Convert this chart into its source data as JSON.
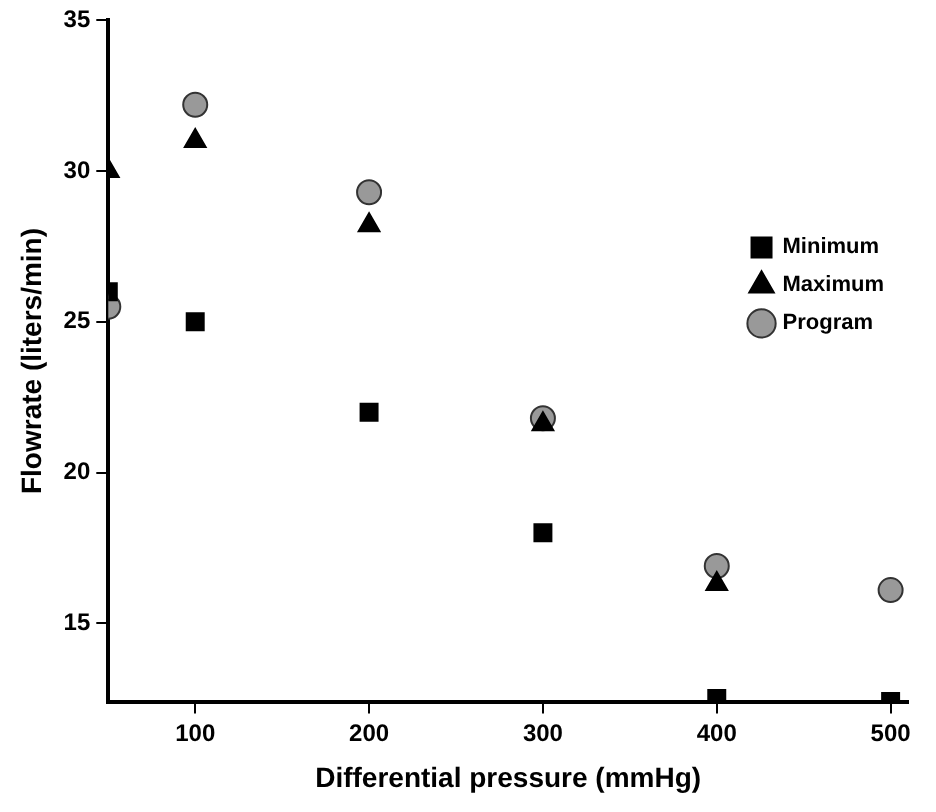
{
  "chart_data": {
    "type": "scatter",
    "xlabel": "Differential pressure (mmHg)",
    "ylabel": "Flowrate (liters/min)",
    "x": [
      50,
      100,
      200,
      300,
      400,
      500
    ],
    "series": [
      {
        "name": "Minimum",
        "color": "#000000",
        "marker": "square",
        "values": [
          26,
          25,
          22,
          18,
          12.5,
          12.4
        ]
      },
      {
        "name": "Maximum",
        "color": "#000000",
        "marker": "triangle",
        "values": [
          30,
          31,
          28.2,
          21.6,
          16.3,
          null
        ]
      },
      {
        "name": "Program",
        "color": "#999999",
        "marker": "circle",
        "values": [
          25.5,
          32.2,
          29.3,
          21.8,
          16.9,
          16.1
        ]
      }
    ],
    "xlim": [
      50,
      510
    ],
    "xticks": [
      100,
      200,
      300,
      400,
      500
    ],
    "ylim": [
      12.4,
      35
    ],
    "yticks": [
      15,
      20,
      25,
      30,
      35
    ],
    "grid": false,
    "legend": "top right"
  }
}
